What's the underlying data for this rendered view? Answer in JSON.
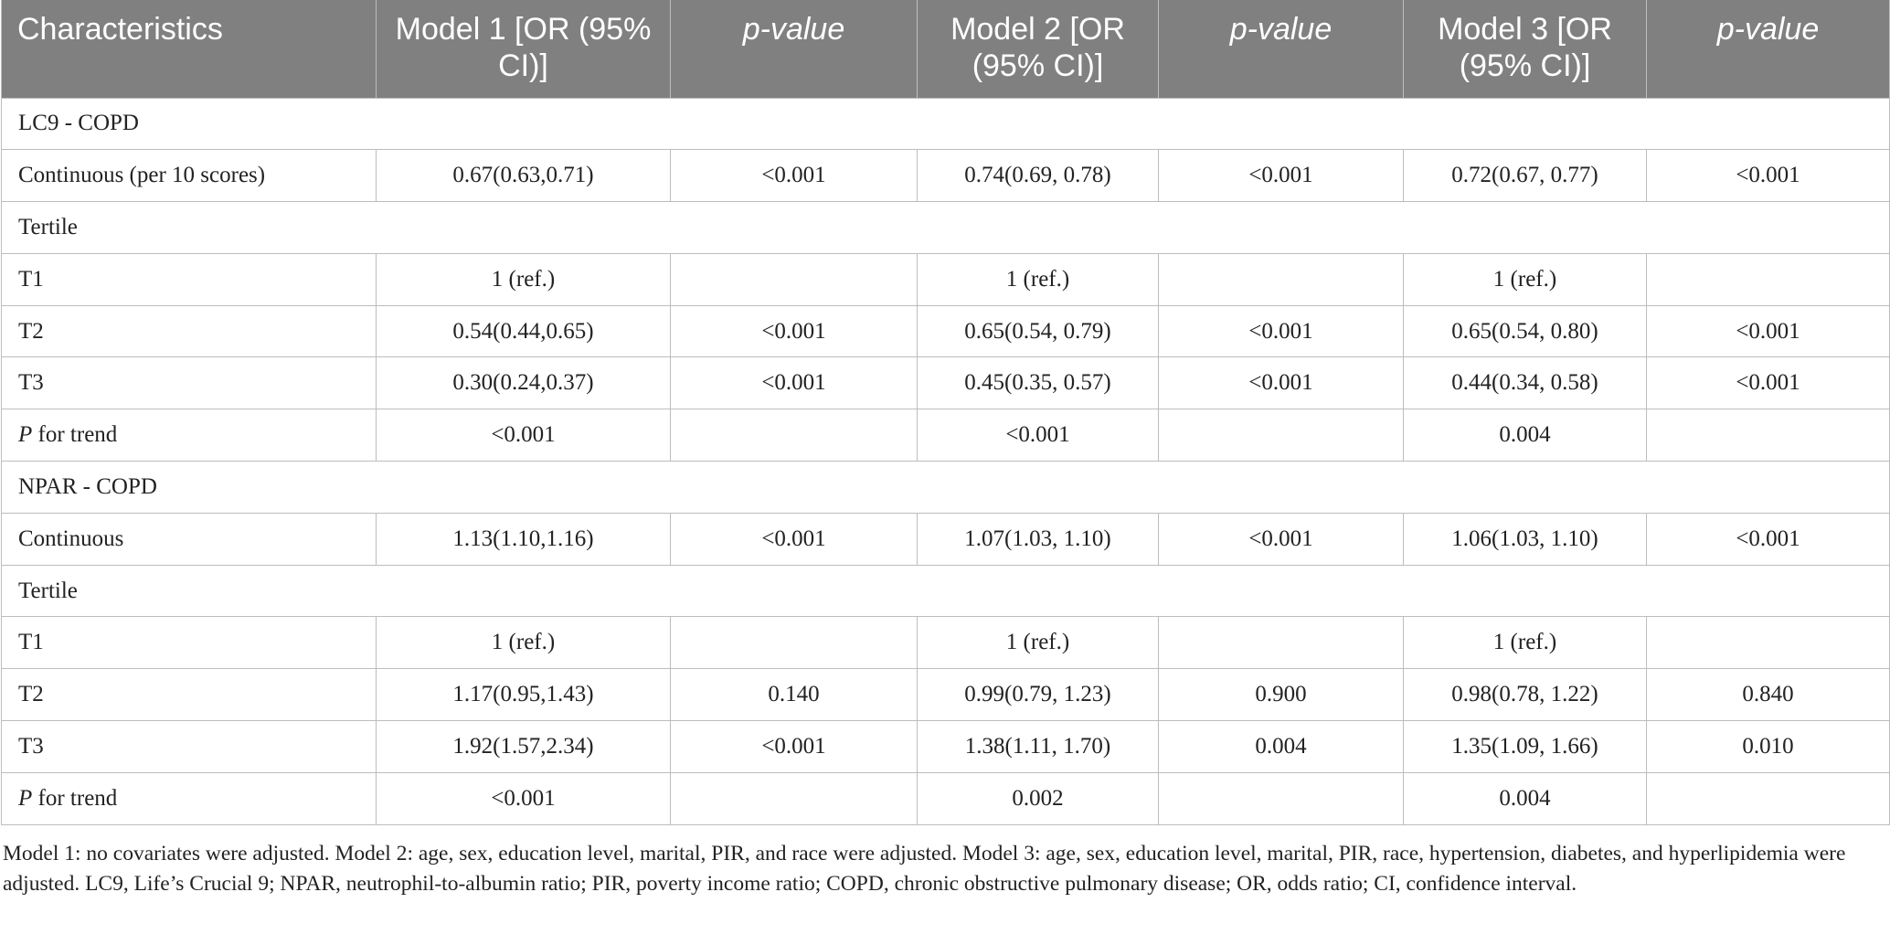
{
  "header": {
    "characteristics": "Characteristics",
    "model1": "Model 1 [OR (95% CI)]",
    "pvalue1": "p-value",
    "model2": "Model 2 [OR (95% CI)]",
    "pvalue2": "p-value",
    "model3": "Model 3 [OR (95% CI)]",
    "pvalue3": "p-value"
  },
  "sections": [
    {
      "title": "LC9 - COPD",
      "continuous": {
        "label": "Continuous (per 10 scores)",
        "m1": "0.67(0.63,0.71)",
        "p1": "<0.001",
        "m2": "0.74(0.69, 0.78)",
        "p2": "<0.001",
        "m3": "0.72(0.67, 0.77)",
        "p3": "<0.001"
      },
      "tertile_label": "Tertile",
      "t1": {
        "label": "T1",
        "m1": "1 (ref.)",
        "p1": "",
        "m2": "1 (ref.)",
        "p2": "",
        "m3": "1 (ref.)",
        "p3": ""
      },
      "t2": {
        "label": "T2",
        "m1": "0.54(0.44,0.65)",
        "p1": "<0.001",
        "m2": "0.65(0.54, 0.79)",
        "p2": "<0.001",
        "m3": "0.65(0.54, 0.80)",
        "p3": "<0.001"
      },
      "t3": {
        "label": "T3",
        "m1": "0.30(0.24,0.37)",
        "p1": "<0.001",
        "m2": "0.45(0.35, 0.57)",
        "p2": "<0.001",
        "m3": "0.44(0.34, 0.58)",
        "p3": "<0.001"
      },
      "trend": {
        "label_p": "P",
        "label_rest": " for trend",
        "m1": "<0.001",
        "m2": "<0.001",
        "m3": "0.004"
      }
    },
    {
      "title": "NPAR - COPD",
      "continuous": {
        "label": "Continuous",
        "m1": "1.13(1.10,1.16)",
        "p1": "<0.001",
        "m2": "1.07(1.03, 1.10)",
        "p2": "<0.001",
        "m3": "1.06(1.03, 1.10)",
        "p3": "<0.001"
      },
      "tertile_label": "Tertile",
      "t1": {
        "label": "T1",
        "m1": "1 (ref.)",
        "p1": "",
        "m2": "1 (ref.)",
        "p2": "",
        "m3": "1 (ref.)",
        "p3": ""
      },
      "t2": {
        "label": "T2",
        "m1": "1.17(0.95,1.43)",
        "p1": "0.140",
        "m2": "0.99(0.79, 1.23)",
        "p2": "0.900",
        "m3": "0.98(0.78, 1.22)",
        "p3": "0.840"
      },
      "t3": {
        "label": "T3",
        "m1": "1.92(1.57,2.34)",
        "p1": "<0.001",
        "m2": "1.38(1.11, 1.70)",
        "p2": "0.004",
        "m3": "1.35(1.09, 1.66)",
        "p3": "0.010"
      },
      "trend": {
        "label_p": "P",
        "label_rest": " for trend",
        "m1": "<0.001",
        "m2": "0.002",
        "m3": "0.004"
      }
    }
  ],
  "footnote": "Model 1: no covariates were adjusted. Model 2: age, sex, education level, marital, PIR, and race were adjusted. Model 3: age, sex, education level, marital, PIR, race, hypertension, diabetes, and hyperlipidemia were adjusted. LC9, Life’s Crucial 9; NPAR, neutrophil-to-albumin ratio; PIR, poverty income ratio; COPD, chronic obstructive pulmonary disease; OR, odds ratio; CI, confidence interval."
}
